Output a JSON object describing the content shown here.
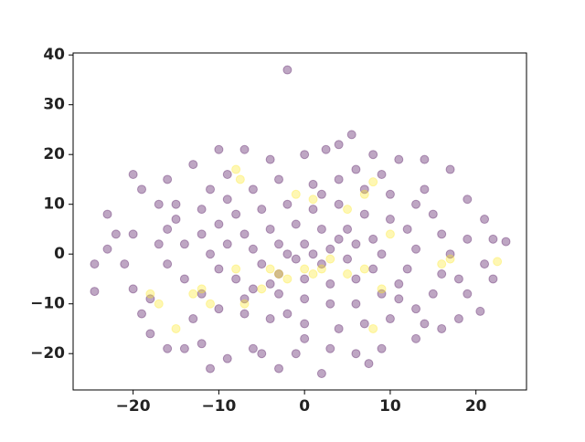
{
  "chart_data": {
    "type": "scatter",
    "xlim": [
      -27.0,
      25.9
    ],
    "ylim": [
      -27.3,
      40.4
    ],
    "xticks": [
      {
        "value": -20,
        "label": "−20"
      },
      {
        "value": -10,
        "label": "−10"
      },
      0,
      10,
      20
    ],
    "yticks": [
      {
        "value": -20,
        "label": "−20"
      },
      {
        "value": -10,
        "label": "−10"
      },
      0,
      10,
      20,
      30,
      40
    ],
    "grid": false,
    "alpha": 0.35,
    "series": [
      {
        "color": "#440154",
        "x": [
          -2,
          -24.5,
          -24.5,
          23.5,
          20.5,
          22,
          2,
          -3,
          -11,
          7.5,
          -5,
          5.5,
          2.5,
          -7,
          -10,
          -20,
          -19,
          -23,
          -22,
          -23,
          -21,
          -20,
          -19,
          -18,
          -16,
          -14,
          -12,
          -9,
          -6,
          -1,
          3,
          6,
          9,
          13,
          16,
          18,
          19,
          21,
          22,
          21,
          19,
          17,
          14,
          11,
          8,
          4,
          0,
          -4,
          -13,
          -16,
          -17,
          -15,
          -12,
          -9,
          -6,
          -3,
          1,
          4,
          7,
          10,
          13,
          15,
          16,
          17,
          16,
          15,
          13,
          10,
          7,
          4,
          0,
          -4,
          -7,
          -10,
          -12,
          -14,
          -16,
          -17,
          -16,
          -14,
          -12,
          -10,
          -8,
          -5,
          -2,
          1,
          4,
          7,
          10,
          12,
          13,
          12,
          11,
          9,
          6,
          3,
          0,
          -3,
          -6,
          -8,
          -10,
          -11,
          -9,
          -7,
          -4,
          -1,
          2,
          5,
          8,
          9,
          8,
          6,
          3,
          0,
          -3,
          -5,
          -6,
          -3,
          0,
          3,
          5,
          2,
          -1,
          1,
          -2,
          4,
          -4,
          6,
          -7,
          11,
          14,
          -13,
          -18,
          -20,
          19,
          18,
          9,
          -9,
          0,
          -2,
          2,
          6,
          -11,
          14,
          -15
        ],
        "values": [
          37,
          -2,
          -7.5,
          2.5,
          -11.5,
          -5,
          -24,
          -23,
          -23,
          -22,
          -20,
          24,
          21,
          21,
          21,
          16,
          13,
          8,
          4,
          1,
          -2,
          -7,
          -12,
          -16,
          -19,
          -19,
          -18,
          -21,
          -19,
          -20,
          -19,
          -20,
          -19,
          -17,
          -15,
          -13,
          -8,
          -2,
          3,
          7,
          11,
          17,
          19,
          19,
          20,
          22,
          20,
          19,
          18,
          15,
          10,
          7,
          9,
          11,
          13,
          15,
          14,
          15,
          13,
          12,
          10,
          8,
          4,
          0,
          -4,
          -8,
          -11,
          -13,
          -14,
          -15,
          -14,
          -13,
          -12,
          -11,
          -8,
          -5,
          -2,
          2,
          5,
          2,
          4,
          6,
          8,
          9,
          10,
          9,
          10,
          8,
          7,
          5,
          1,
          -3,
          -6,
          -8,
          -10,
          -10,
          -9,
          -8,
          -7,
          -5,
          -3,
          0,
          2,
          4,
          5,
          6,
          5,
          5,
          3,
          0,
          -3,
          -5,
          -6,
          -5,
          -4,
          -2,
          1,
          2,
          2,
          1,
          -1,
          -2,
          -1,
          0,
          0,
          3,
          -6,
          2,
          -9,
          -9,
          -14,
          -13,
          -9,
          4,
          3,
          -5,
          16,
          16,
          -17,
          -12,
          12,
          17,
          13,
          13,
          10
        ]
      },
      {
        "color": "#fde725",
        "x": [
          -8,
          -7.5,
          8,
          -18,
          -17,
          -15,
          -13,
          -12,
          -11,
          -8,
          -7,
          -4,
          -3,
          -2,
          0,
          1,
          2,
          3,
          5,
          7,
          8,
          16,
          17,
          22.5,
          5,
          10,
          -1,
          1,
          7,
          -5,
          9
        ],
        "values": [
          17,
          15,
          14.5,
          -8,
          -10,
          -15,
          -8,
          -7,
          -10,
          -3,
          -10,
          -3,
          -4,
          -5,
          -3,
          -4,
          -3,
          -1,
          -4,
          -3,
          -15,
          -2,
          -1,
          -1.5,
          9,
          4,
          12,
          11,
          12,
          -7,
          -7
        ]
      }
    ]
  }
}
